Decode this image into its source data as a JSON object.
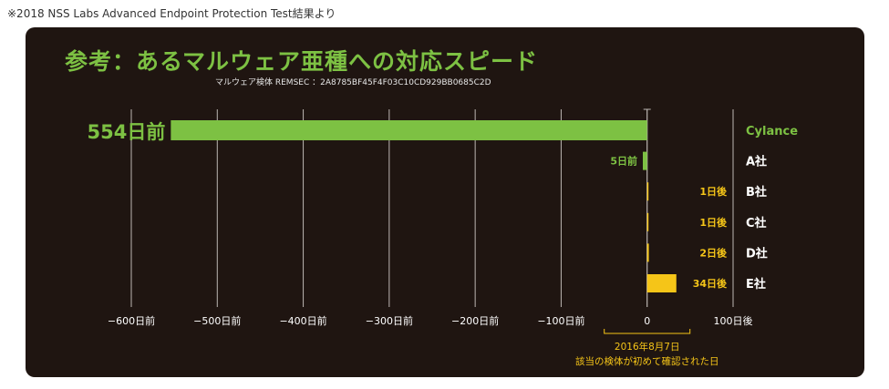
{
  "source_note": "※2018 NSS Labs Advanced Endpoint Protection Test結果より",
  "chart_data": {
    "type": "bar",
    "orientation": "horizontal",
    "title": "参考：あるマルウェア亜種への対応スピード",
    "subtitle": "マルウェア検体 REMSEC ：2A8785BF45F4F03C10CD929BB0685C2D",
    "categories": [
      "Cylance",
      "A社",
      "B社",
      "C社",
      "D社",
      "E社"
    ],
    "values": [
      -554,
      -5,
      1,
      1,
      2,
      34
    ],
    "value_labels": [
      "554日前",
      "5日前",
      "1日後",
      "1日後",
      "2日後",
      "34日後"
    ],
    "xlim": [
      -600,
      100
    ],
    "x_ticks": [
      -600,
      -500,
      -400,
      -300,
      -200,
      -100,
      0,
      100
    ],
    "x_tick_labels": [
      "−600日前",
      "−500日前",
      "−400日前",
      "−300日前",
      "−200日前",
      "−100日前",
      "0",
      "100日後"
    ],
    "grid": true,
    "annotation": {
      "date": "2016年8月7日",
      "text": "該当の検体が初めて確認された日"
    },
    "colors": {
      "before": "#7dc143",
      "after": "#f5c518",
      "background": "#1f1511",
      "grid": "#bdb7b3"
    }
  }
}
